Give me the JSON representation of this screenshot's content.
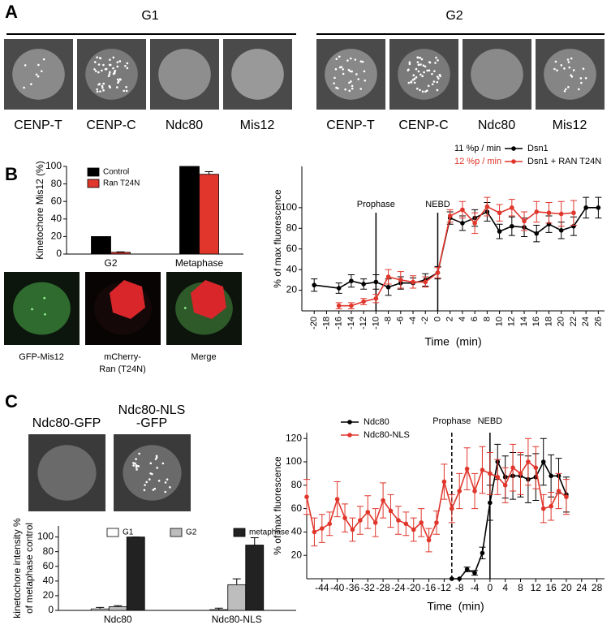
{
  "figure": {
    "panels": [
      "A",
      "B",
      "C"
    ],
    "group_headers": [
      "G1",
      "G2"
    ],
    "images_a": [
      {
        "label": [
          "CENP-T"
        ]
      },
      {
        "label": [
          "CENP-C"
        ]
      },
      {
        "label": [
          "Ndc80"
        ]
      },
      {
        "label": [
          "Mis12"
        ]
      },
      {
        "label": [
          "CENP-T"
        ]
      },
      {
        "label": [
          "CENP-C"
        ]
      },
      {
        "label": [
          "Ndc80"
        ]
      },
      {
        "label": [
          "Mis12"
        ]
      }
    ],
    "images_b": [
      {
        "label": [
          "GFP-Mis12"
        ]
      },
      {
        "label": [
          "mCherry-",
          "Ran (T24N)"
        ]
      },
      {
        "label": [
          "Merge"
        ]
      }
    ],
    "images_c": [
      {
        "label": [
          "Ndc80-GFP"
        ]
      },
      {
        "label": [
          "Ndc80-NLS",
          "-GFP"
        ]
      }
    ]
  },
  "chart_data": [
    {
      "type": "bar",
      "ylabel": "Kinetochore Mis12 (%)",
      "categories": [
        "G2",
        "Metaphase"
      ],
      "series": [
        {
          "name": "Control",
          "color": "#000000",
          "values": [
            20,
            100
          ]
        },
        {
          "name": "Ran T24N",
          "color": "#e0362c",
          "values": [
            2,
            91
          ],
          "errors": [
            0.5,
            3
          ]
        }
      ],
      "ylim": [
        0,
        100
      ],
      "yticks": [
        0,
        20,
        40,
        60,
        80,
        100
      ]
    },
    {
      "type": "line",
      "xlabel": "Time  (min)",
      "ylabel": "% of max fluorescence",
      "series": [
        {
          "name": "Dsn1",
          "rate_label": "11 %p / min",
          "color": "#000000",
          "x": [
            -20,
            -16,
            -14,
            -12,
            -10,
            -8,
            -6,
            -4,
            -2,
            0,
            2,
            4,
            6,
            8,
            10,
            12,
            14,
            16,
            18,
            20,
            22,
            24,
            26
          ],
          "values": [
            25,
            22,
            29,
            26,
            28,
            23,
            27,
            27,
            30,
            37,
            90,
            85,
            90,
            96,
            77,
            82,
            81,
            75,
            84,
            78,
            82,
            100,
            100
          ],
          "errors": [
            6,
            5,
            6,
            5,
            7,
            8,
            6,
            5,
            6,
            6,
            6,
            7,
            8,
            9,
            7,
            9,
            9,
            8,
            8,
            8,
            9,
            10,
            10
          ]
        },
        {
          "name": "Dsn1 + RAN T24N",
          "rate_label": "12 %p / min",
          "color": "#e0362c",
          "x": [
            -16,
            -14,
            -12,
            -10,
            -8,
            -6,
            -4,
            -2,
            0,
            2,
            4,
            6,
            8,
            10,
            12,
            14,
            16,
            18,
            20,
            22
          ],
          "values": [
            5,
            5,
            9,
            12,
            33,
            30,
            28,
            28,
            37,
            92,
            98,
            85,
            101,
            95,
            100,
            87,
            96,
            95,
            94,
            95
          ],
          "errors": [
            3,
            3,
            3,
            4,
            7,
            8,
            6,
            5,
            5,
            6,
            8,
            10,
            9,
            8,
            8,
            9,
            10,
            10,
            12,
            12
          ]
        }
      ],
      "markers": [
        {
          "x": -10,
          "label": "Prophase",
          "style": "solid"
        },
        {
          "x": 0,
          "label": "NEBD",
          "style": "solid"
        }
      ],
      "xlim": [
        -22,
        27
      ],
      "xticks": [
        -20,
        -18,
        -16,
        -14,
        -12,
        -10,
        -8,
        -6,
        -4,
        -2,
        0,
        2,
        4,
        6,
        8,
        10,
        12,
        14,
        16,
        18,
        20,
        22,
        24,
        26
      ],
      "ylim": [
        0,
        140
      ],
      "yticks": [
        20,
        40,
        60,
        80,
        100
      ]
    },
    {
      "type": "bar",
      "ylabel": [
        "kinetochore intensity %",
        "of metaphase control"
      ],
      "categories": [
        "Ndc80",
        "Ndc80-NLS"
      ],
      "series": [
        {
          "name": "G1",
          "color": "#ffffff",
          "values": [
            2,
            1
          ],
          "errors": [
            2,
            2
          ]
        },
        {
          "name": "G2",
          "color": "#bdbdbd",
          "values": [
            5,
            35
          ],
          "errors": [
            1.5,
            8
          ]
        },
        {
          "name": "metaphase",
          "color": "#222222",
          "values": [
            100,
            89
          ],
          "errors": [
            0,
            10
          ]
        }
      ],
      "ylim": [
        0,
        115
      ],
      "yticks": [
        0,
        20,
        40,
        60,
        80,
        100
      ]
    },
    {
      "type": "line",
      "xlabel": "Time  (min)",
      "ylabel": "% of max fluorescence",
      "series": [
        {
          "name": "Ndc80",
          "color": "#000000",
          "x": [
            -10,
            -8,
            -6,
            -4,
            -2,
            0,
            2,
            4,
            6,
            8,
            10,
            12,
            14,
            16,
            18,
            20
          ],
          "values": [
            0,
            0,
            8,
            5,
            22,
            65,
            100,
            87,
            88,
            88,
            85,
            87,
            100,
            88,
            88,
            72
          ],
          "errors": [
            0,
            0,
            2,
            2,
            5,
            15,
            15,
            18,
            20,
            18,
            20,
            20,
            20,
            18,
            15,
            15
          ]
        },
        {
          "name": "Ndc80-NLS",
          "color": "#e0362c",
          "x": [
            -48,
            -46,
            -44,
            -42,
            -40,
            -38,
            -36,
            -34,
            -32,
            -30,
            -28,
            -26,
            -24,
            -22,
            -20,
            -18,
            -16,
            -14,
            -12,
            -10,
            -8,
            -6,
            -4,
            -2,
            0,
            2,
            4,
            6,
            8,
            10,
            12,
            14,
            16,
            18,
            20
          ],
          "values": [
            70,
            40,
            43,
            47,
            68,
            52,
            42,
            50,
            57,
            48,
            67,
            58,
            50,
            47,
            42,
            48,
            33,
            48,
            83,
            60,
            75,
            94,
            75,
            93,
            90,
            87,
            80,
            95,
            90,
            100,
            95,
            60,
            62,
            75,
            70
          ],
          "errors": [
            15,
            12,
            12,
            10,
            15,
            12,
            10,
            12,
            14,
            12,
            15,
            14,
            12,
            10,
            10,
            12,
            10,
            10,
            15,
            12,
            15,
            18,
            15,
            20,
            18,
            15,
            15,
            20,
            18,
            20,
            18,
            12,
            12,
            15,
            15
          ]
        }
      ],
      "markers": [
        {
          "x": -10,
          "label": "Prophase",
          "style": "dashed"
        },
        {
          "x": 0,
          "label": "NEBD",
          "style": "solid"
        }
      ],
      "xlim": [
        -48,
        30
      ],
      "xticks": [
        -44,
        -40,
        -36,
        -32,
        -28,
        -24,
        -20,
        -16,
        -12,
        -8,
        -4,
        0,
        4,
        8,
        12,
        16,
        20,
        24,
        28
      ],
      "ylim": [
        0,
        125
      ],
      "yticks": [
        20,
        40,
        60,
        80,
        100,
        120
      ]
    }
  ]
}
